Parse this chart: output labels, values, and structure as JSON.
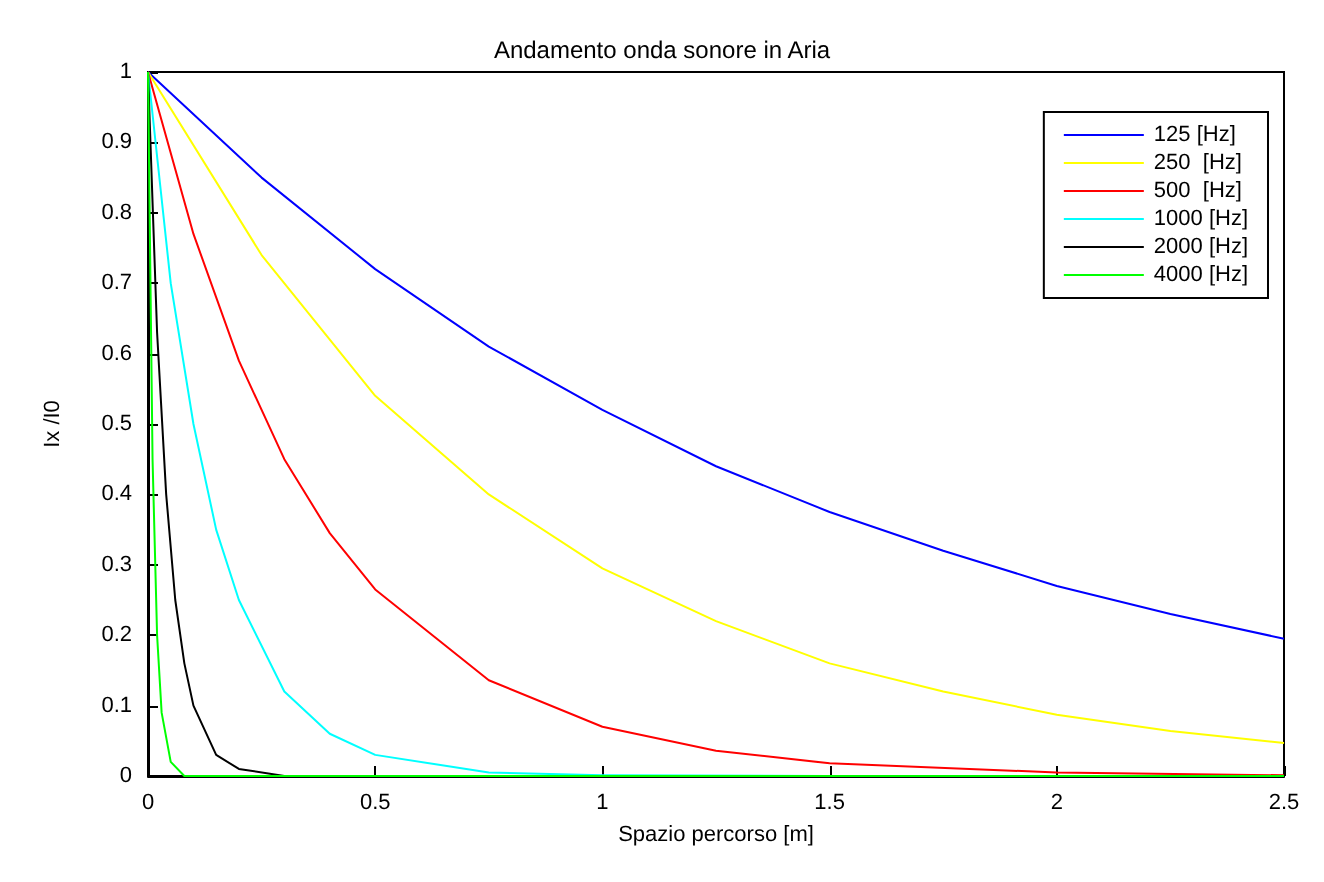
{
  "chart_data": {
    "type": "line",
    "title": "Andamento onda sonore in Aria",
    "xlabel": "Spazio percorso [m]",
    "ylabel": "Ix /I0",
    "xlim": [
      0,
      2.5
    ],
    "xticks": [
      0,
      0.5,
      1,
      1.5,
      2,
      2.5
    ],
    "ylim": [
      0,
      1
    ],
    "yticks": [
      0,
      0.1,
      0.2,
      0.3,
      0.4,
      0.5,
      0.6,
      0.7,
      0.8,
      0.9,
      1
    ],
    "grid": false,
    "legend": "top right",
    "marker": "none",
    "line_style": "solid",
    "series": [
      {
        "name": "125 [Hz]",
        "color": "#0000ff",
        "x": [
          0,
          0.25,
          0.5,
          0.75,
          1,
          1.25,
          1.5,
          1.75,
          2,
          2.25,
          2.5
        ],
        "values": [
          1,
          0.85,
          0.72,
          0.61,
          0.52,
          0.44,
          0.375,
          0.32,
          0.27,
          0.23,
          0.195
        ]
      },
      {
        "name": "250  [Hz]",
        "color": "#ffff00",
        "x": [
          0,
          0.25,
          0.5,
          0.75,
          1,
          1.25,
          1.5,
          1.75,
          2,
          2.25,
          2.5
        ],
        "values": [
          1,
          0.74,
          0.54,
          0.4,
          0.295,
          0.22,
          0.16,
          0.12,
          0.087,
          0.064,
          0.047
        ]
      },
      {
        "name": "500  [Hz]",
        "color": "#ff0000",
        "x": [
          0,
          0.1,
          0.2,
          0.3,
          0.4,
          0.5,
          0.75,
          1,
          1.25,
          1.5,
          2,
          2.5
        ],
        "values": [
          1,
          0.77,
          0.59,
          0.45,
          0.345,
          0.265,
          0.136,
          0.07,
          0.036,
          0.018,
          0.005,
          0.001
        ]
      },
      {
        "name": "1000 [Hz]",
        "color": "#00ffff",
        "x": [
          0,
          0.05,
          0.1,
          0.15,
          0.2,
          0.3,
          0.4,
          0.5,
          0.75,
          1,
          1.5,
          2.5
        ],
        "values": [
          1,
          0.7,
          0.5,
          0.35,
          0.25,
          0.12,
          0.06,
          0.03,
          0.005,
          0.001,
          0,
          0
        ]
      },
      {
        "name": "2000 [Hz]",
        "color": "#000000",
        "x": [
          0,
          0.02,
          0.04,
          0.06,
          0.08,
          0.1,
          0.15,
          0.2,
          0.3,
          2.5
        ],
        "values": [
          1,
          0.63,
          0.4,
          0.25,
          0.16,
          0.1,
          0.03,
          0.01,
          0,
          0
        ]
      },
      {
        "name": "4000 [Hz]",
        "color": "#00ff00",
        "x": [
          0,
          0.01,
          0.02,
          0.03,
          0.05,
          0.08,
          0.1,
          2.5
        ],
        "values": [
          1,
          0.45,
          0.2,
          0.09,
          0.02,
          0,
          0,
          0
        ]
      }
    ]
  }
}
